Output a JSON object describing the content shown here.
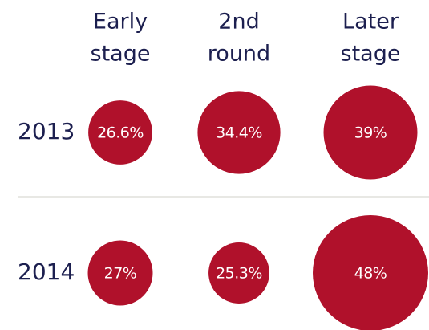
{
  "chart_data": {
    "type": "bubble",
    "categories": [
      [
        "Early",
        "stage"
      ],
      [
        "2nd",
        "round"
      ],
      [
        "Later",
        "stage"
      ]
    ],
    "series": [
      {
        "name": "2013",
        "color": "#b0112b",
        "values": [
          26.6,
          34.4,
          39
        ],
        "value_labels": [
          "26.6%",
          "34.4%",
          "39%"
        ]
      },
      {
        "name": "2014",
        "color": "#b0112b",
        "values": [
          27,
          25.3,
          48
        ],
        "value_labels": [
          "27%",
          "25.3%",
          "48%"
        ]
      }
    ]
  }
}
